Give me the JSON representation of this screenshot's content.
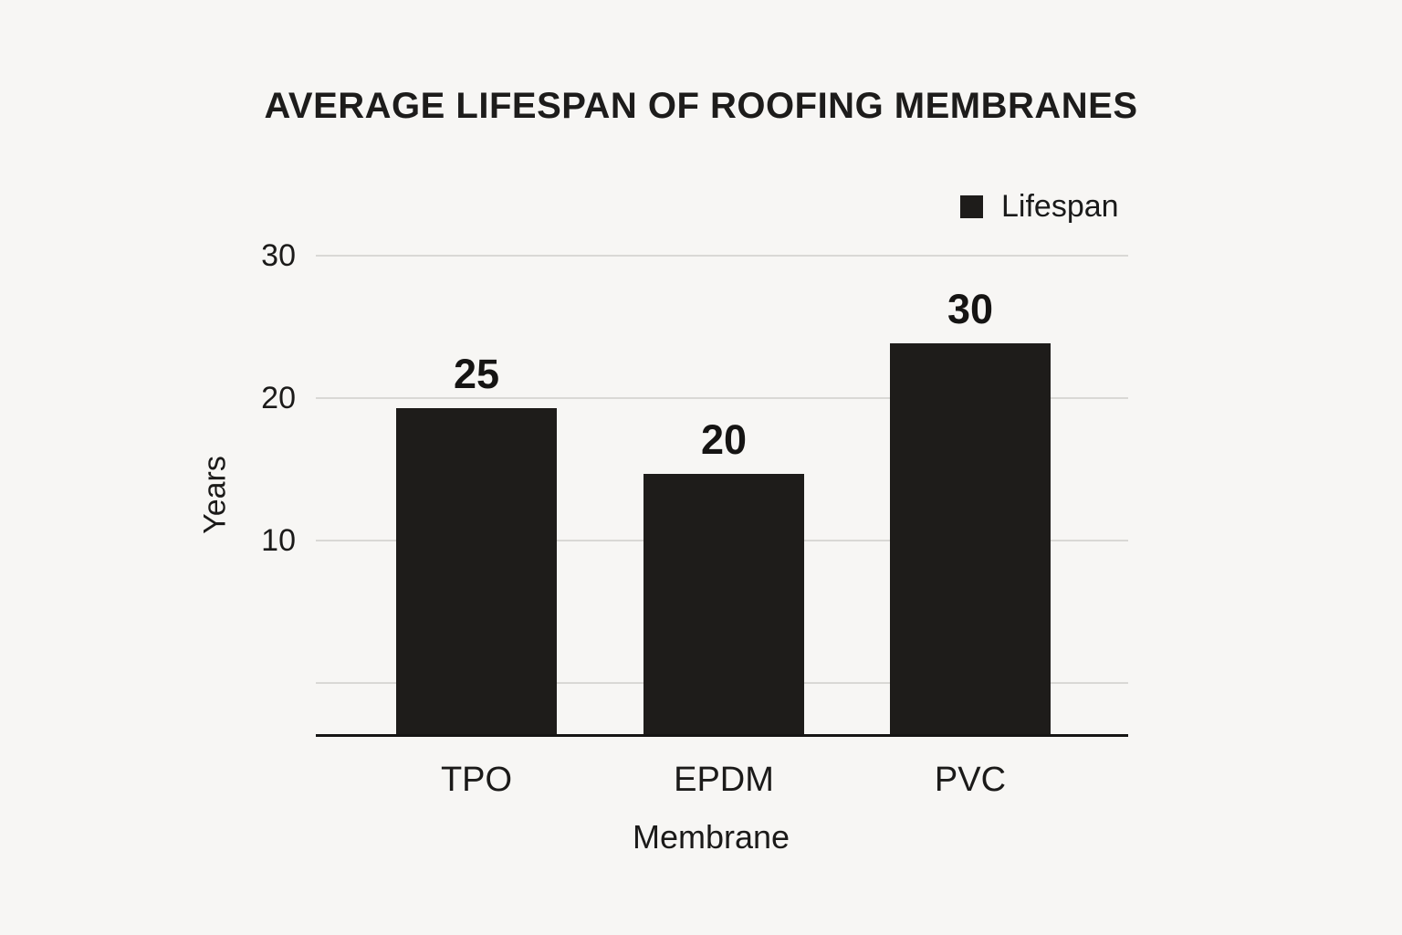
{
  "chart_data": {
    "type": "bar",
    "title": "AVERAGE LIFESPAN OF ROOFING MEMBRANES",
    "xlabel": "Membrane",
    "ylabel": "Years",
    "categories": [
      "TPO",
      "EPDM",
      "PVC"
    ],
    "series": [
      {
        "name": "Lifespan",
        "values": [
          25,
          20,
          30
        ]
      }
    ],
    "data_labels": [
      "25",
      "20",
      "30"
    ],
    "yticks_labeled": [
      30,
      20,
      10
    ],
    "gridlines_at": [
      30,
      20,
      10,
      0
    ],
    "ylim": [
      0,
      32
    ],
    "grid": true,
    "legend": {
      "label": "Lifespan",
      "position": "top-right"
    }
  },
  "colors": {
    "background": "#f7f6f4",
    "bar": "#1e1c1a",
    "gridline": "#d9d8d5",
    "axis": "#161514",
    "text": "#1b1a19"
  }
}
